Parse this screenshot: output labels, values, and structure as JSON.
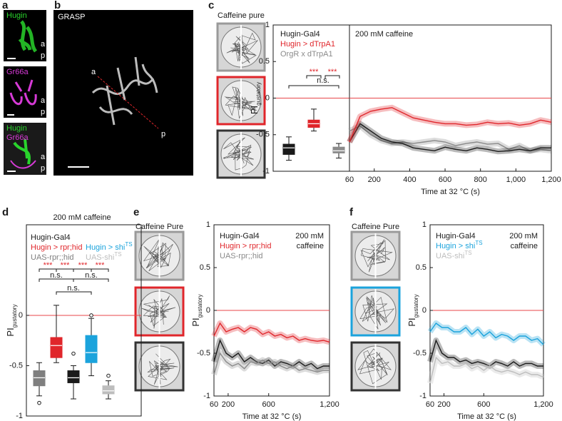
{
  "panel_a": {
    "label": "a",
    "image_1": {
      "stain": "Hugin",
      "anterior": "a",
      "posterior": "p"
    },
    "image_2": {
      "stain": "Gr66a",
      "anterior": "a",
      "posterior": "p"
    },
    "image_3": {
      "stains": [
        "Hugin",
        "Gr66a"
      ],
      "anterior": "a",
      "posterior": "p"
    }
  },
  "panel_b": {
    "label": "b",
    "title": "GRASP",
    "anterior": "a",
    "posterior": "p"
  },
  "panel_c": {
    "label": "c",
    "arena_title": "Caffeine pure"
  },
  "panel_d": {
    "label": "d"
  },
  "panel_e": {
    "label": "e",
    "arena_title": "Caffeine Pure"
  },
  "panel_f": {
    "label": "f",
    "arena_title": "Caffeine Pure"
  },
  "chart_data": [
    {
      "type": "box",
      "ylabel": "PI",
      "ylabel_sub": "gustatory",
      "ylim": [
        -1,
        1
      ],
      "yticks": [
        -1,
        -0.5,
        0,
        0.5,
        1
      ],
      "hline": 0,
      "series": [
        {
          "name": "Hugin-Gal4",
          "color": "#1a1a1a",
          "min": -0.85,
          "q1": -0.77,
          "median": -0.68,
          "q3": -0.63,
          "max": -0.53,
          "outliers": []
        },
        {
          "name": "Hugin > dTrpA1",
          "color": "#e0262b",
          "min": -0.45,
          "q1": -0.4,
          "median": -0.35,
          "q3": -0.3,
          "max": -0.15,
          "outliers": []
        },
        {
          "name": "OrgR x dTrpA1",
          "color": "#8a8a8a",
          "min": -0.82,
          "q1": -0.75,
          "median": -0.72,
          "q3": -0.67,
          "max": -0.62,
          "outliers": []
        }
      ],
      "annotations": [
        {
          "text": "***",
          "color": "#e0262b"
        },
        {
          "text": "***",
          "color": "#e0262b"
        },
        {
          "text": "n.s.",
          "color": "#1a1a1a"
        }
      ]
    },
    {
      "type": "line",
      "annotation": "200 mM caffeine",
      "xlabel": "Time at 32 °C (s)",
      "xlim": [
        60,
        1200
      ],
      "ylim": [
        -1,
        1
      ],
      "hline": 0,
      "xticks": [
        60,
        200,
        400,
        600,
        800,
        {
          "value": 1000,
          "label": "1,000"
        },
        {
          "value": 1200,
          "label": "1,200"
        }
      ],
      "x": [
        60,
        120,
        180,
        240,
        300,
        360,
        420,
        480,
        540,
        600,
        660,
        720,
        780,
        840,
        900,
        960,
        1020,
        1080,
        1140,
        1200
      ],
      "series": [
        {
          "color": "#8a8a8a",
          "values": [
            -0.45,
            -0.38,
            -0.5,
            -0.58,
            -0.62,
            -0.6,
            -0.62,
            -0.6,
            -0.58,
            -0.6,
            -0.65,
            -0.62,
            -0.6,
            -0.63,
            -0.62,
            -0.7,
            -0.65,
            -0.72,
            -0.7,
            -0.72
          ]
        },
        {
          "color": "#1a1a1a",
          "values": [
            -0.6,
            -0.35,
            -0.45,
            -0.55,
            -0.6,
            -0.62,
            -0.68,
            -0.7,
            -0.72,
            -0.67,
            -0.7,
            -0.72,
            -0.68,
            -0.7,
            -0.73,
            -0.72,
            -0.7,
            -0.72,
            -0.68,
            -0.68
          ]
        },
        {
          "color": "#e0262b",
          "values": [
            -0.6,
            -0.25,
            -0.18,
            -0.15,
            -0.13,
            -0.2,
            -0.27,
            -0.3,
            -0.33,
            -0.35,
            -0.35,
            -0.37,
            -0.36,
            -0.33,
            -0.35,
            -0.34,
            -0.37,
            -0.35,
            -0.3,
            -0.33
          ]
        }
      ]
    },
    {
      "type": "box",
      "title": "200 mM caffeine",
      "ylabel": "PI",
      "ylabel_sub": "gustatory",
      "ylim": [
        -1,
        0.9
      ],
      "yticks": [
        -1,
        -0.5,
        0
      ],
      "hline": 0,
      "series": [
        {
          "name": "UAS-rpr;;hid",
          "color": "#7f7f7f",
          "min": -0.8,
          "q1": -0.7,
          "median": -0.62,
          "q3": -0.55,
          "max": -0.47,
          "outliers": [
            -0.87
          ]
        },
        {
          "name": "Hugin > rpr;hid",
          "color": "#e0262b",
          "min": -0.47,
          "q1": -0.42,
          "median": -0.3,
          "q3": -0.22,
          "max": 0.1,
          "outliers": []
        },
        {
          "name": "Hugin-Gal4",
          "color": "#1a1a1a",
          "min": -0.83,
          "q1": -0.67,
          "median": -0.62,
          "q3": -0.55,
          "max": -0.5,
          "outliers": [
            -0.38
          ]
        },
        {
          "name": "Hugin > shi",
          "sup": "TS",
          "color": "#1ba3dc",
          "min": -0.6,
          "q1": -0.47,
          "median": -0.37,
          "q3": -0.2,
          "max": -0.03,
          "outliers": [
            0
          ]
        },
        {
          "name": "UAS-shi",
          "sup": "TS",
          "color": "#bdbdbd",
          "min": -0.83,
          "q1": -0.78,
          "median": -0.75,
          "q3": -0.7,
          "max": -0.65,
          "outliers": [
            -0.6
          ]
        }
      ],
      "annotations": [
        {
          "text": "***",
          "color": "#e0262b"
        },
        {
          "text": "***",
          "color": "#e0262b"
        },
        {
          "text": "***",
          "color": "#e0262b"
        },
        {
          "text": "***",
          "color": "#e0262b"
        },
        {
          "text": "n.s.",
          "color": "#1a1a1a"
        },
        {
          "text": "n.s.",
          "color": "#1a1a1a"
        },
        {
          "text": "n.s.",
          "color": "#1a1a1a"
        }
      ]
    },
    {
      "type": "line",
      "annotation": [
        "200 mM",
        "caffeine"
      ],
      "ylabel": "PI",
      "ylabel_sub": "gustatory",
      "xlabel": "Time at 32 °C (s)",
      "xlim": [
        60,
        1200
      ],
      "ylim": [
        -1,
        1
      ],
      "hline": 0,
      "yticks": [
        -1,
        -0.5,
        0,
        0.5,
        1
      ],
      "xticks": [
        60,
        200,
        600,
        {
          "value": 1200,
          "label": "1,200"
        }
      ],
      "x": [
        60,
        120,
        180,
        240,
        300,
        360,
        420,
        480,
        540,
        600,
        660,
        720,
        780,
        840,
        900,
        960,
        1020,
        1080,
        1140,
        1200
      ],
      "series": [
        {
          "name": "Hugin-Gal4",
          "color": "#1a1a1a",
          "values": [
            -0.6,
            -0.35,
            -0.5,
            -0.55,
            -0.5,
            -0.6,
            -0.55,
            -0.6,
            -0.62,
            -0.58,
            -0.65,
            -0.6,
            -0.62,
            -0.65,
            -0.6,
            -0.65,
            -0.62,
            -0.68,
            -0.65,
            -0.65
          ]
        },
        {
          "name": "Hugin > rpr;hid",
          "color": "#e0262b",
          "values": [
            -0.3,
            -0.15,
            -0.25,
            -0.22,
            -0.2,
            -0.25,
            -0.2,
            -0.22,
            -0.28,
            -0.25,
            -0.3,
            -0.28,
            -0.32,
            -0.3,
            -0.35,
            -0.33,
            -0.35,
            -0.36,
            -0.35,
            -0.37
          ]
        },
        {
          "name": "UAS-rpr;;hid",
          "color": "#8a8a8a",
          "values": [
            -0.75,
            -0.5,
            -0.6,
            -0.65,
            -0.62,
            -0.68,
            -0.6,
            -0.62,
            -0.58,
            -0.62,
            -0.6,
            -0.65,
            -0.68,
            -0.65,
            -0.7,
            -0.68,
            -0.7,
            -0.72,
            -0.7,
            -0.7
          ]
        }
      ]
    },
    {
      "type": "line",
      "annotation": [
        "200 mM",
        "caffeine"
      ],
      "ylabel": "PI",
      "ylabel_sub": "gustatory",
      "xlabel": "Time at 32 °C (s)",
      "xlim": [
        60,
        1200
      ],
      "ylim": [
        -1,
        1
      ],
      "hline": 0,
      "yticks": [
        -1,
        -0.5,
        0,
        0.5,
        1
      ],
      "xticks": [
        60,
        200,
        600,
        {
          "value": 1200,
          "label": "1,200"
        }
      ],
      "x": [
        60,
        120,
        180,
        240,
        300,
        360,
        420,
        480,
        540,
        600,
        660,
        720,
        780,
        840,
        900,
        960,
        1020,
        1080,
        1140,
        1200
      ],
      "series": [
        {
          "name": "Hugin-Gal4",
          "color": "#1a1a1a",
          "values": [
            -0.6,
            -0.35,
            -0.5,
            -0.55,
            -0.55,
            -0.6,
            -0.58,
            -0.62,
            -0.6,
            -0.62,
            -0.65,
            -0.6,
            -0.62,
            -0.65,
            -0.6,
            -0.65,
            -0.62,
            -0.62,
            -0.65,
            -0.65
          ]
        },
        {
          "name": "Hugin > shi",
          "sup": "TS",
          "color": "#1ba3dc",
          "values": [
            -0.25,
            -0.15,
            -0.2,
            -0.2,
            -0.25,
            -0.25,
            -0.2,
            -0.28,
            -0.22,
            -0.3,
            -0.25,
            -0.32,
            -0.28,
            -0.3,
            -0.35,
            -0.3,
            -0.3,
            -0.35,
            -0.33,
            -0.4
          ]
        },
        {
          "name": "UAS-shi",
          "sup": "TS",
          "color": "#bdbdbd",
          "values": [
            -0.85,
            -0.55,
            -0.62,
            -0.6,
            -0.65,
            -0.65,
            -0.62,
            -0.68,
            -0.65,
            -0.7,
            -0.65,
            -0.7,
            -0.72,
            -0.7,
            -0.72,
            -0.75,
            -0.72,
            -0.75,
            -0.75,
            -0.78
          ]
        }
      ]
    }
  ]
}
